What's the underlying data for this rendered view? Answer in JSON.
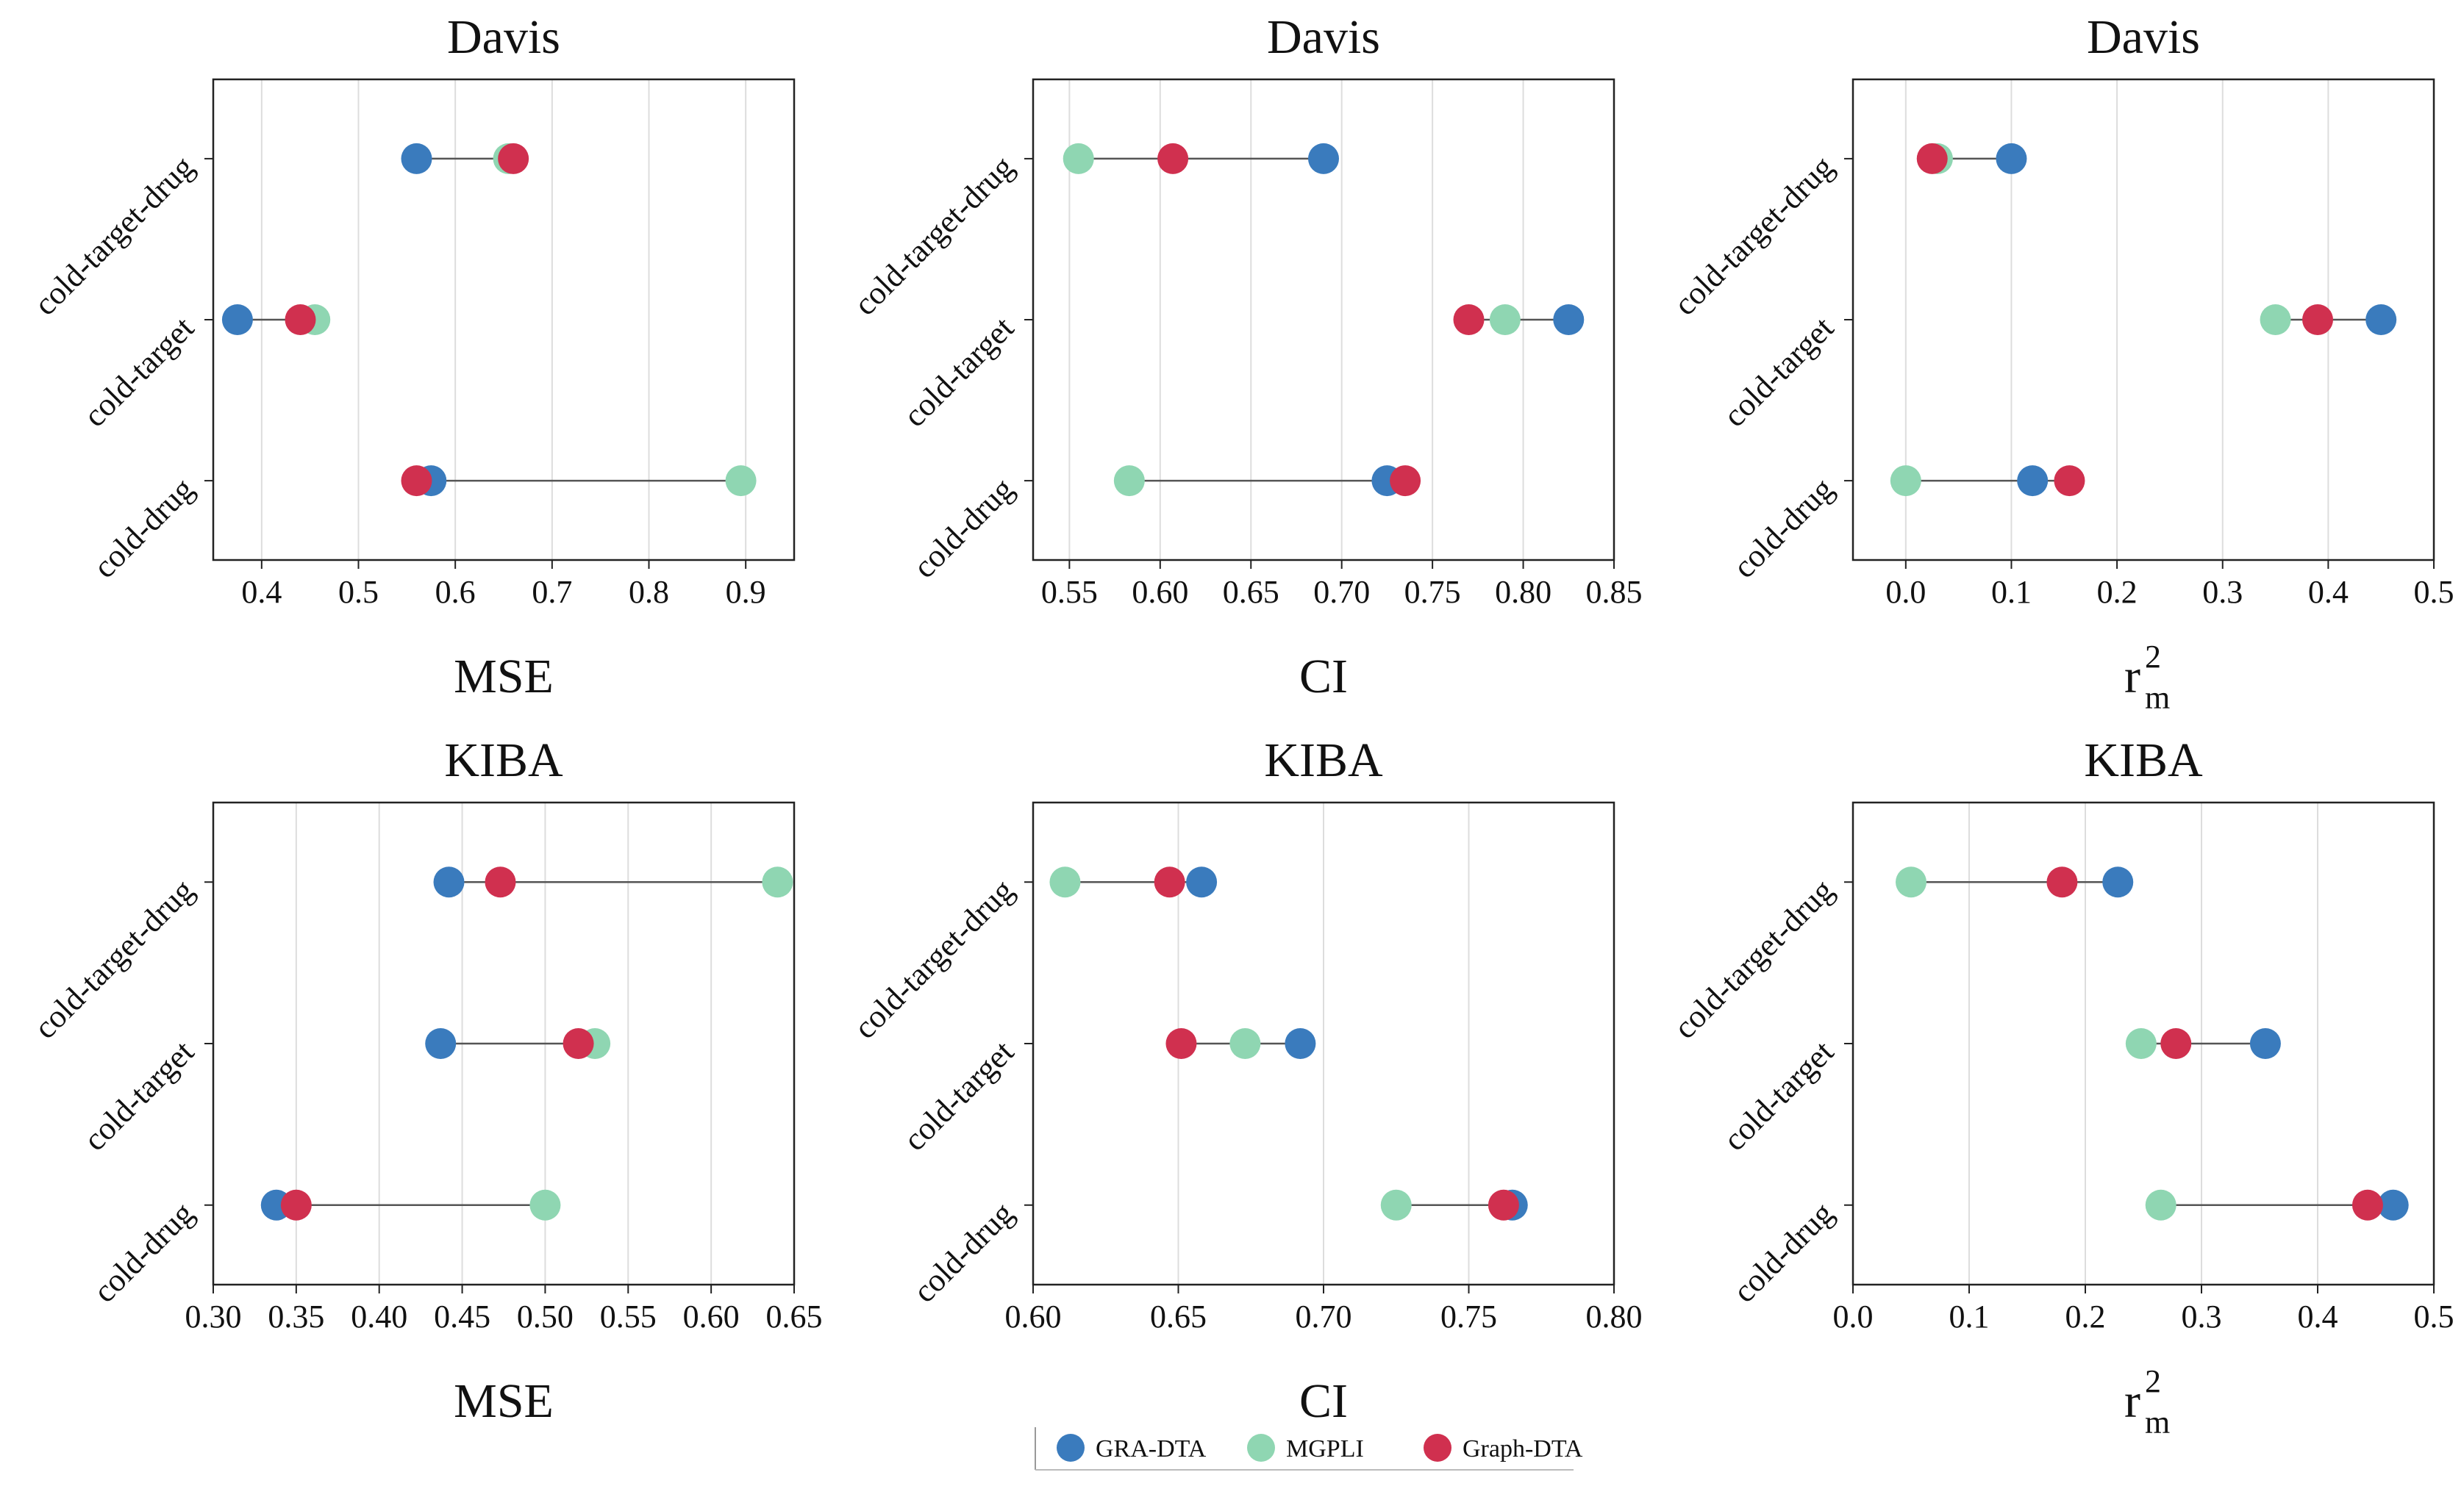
{
  "colors": {
    "GRA-DTA": "#3a7bbd",
    "MGPLI": "#8fd6b2",
    "Graph-DTA": "#d0304f",
    "connector": "#555555",
    "grid": "#dddddd",
    "axis": "#222222"
  },
  "legend": {
    "items": [
      "GRA-DTA",
      "MGPLI",
      "Graph-DTA"
    ],
    "placement": "bottom-center"
  },
  "chart_data": [
    {
      "type": "scatter",
      "subtype": "dumbbell",
      "title": "Davis",
      "xlabel": "MSE",
      "xlim": [
        0.35,
        0.95
      ],
      "xticks": [
        "0.4",
        "0.5",
        "0.6",
        "0.7",
        "0.8",
        "0.9"
      ],
      "categories": [
        "cold-target-drug",
        "cold-target",
        "cold-drug"
      ],
      "grid": "vertical",
      "series": [
        {
          "name": "GRA-DTA",
          "values": [
            0.56,
            0.375,
            0.575
          ]
        },
        {
          "name": "MGPLI",
          "values": [
            0.655,
            0.455,
            0.895
          ]
        },
        {
          "name": "Graph-DTA",
          "values": [
            0.66,
            0.44,
            0.56
          ]
        }
      ]
    },
    {
      "type": "scatter",
      "subtype": "dumbbell",
      "title": "Davis",
      "xlabel": "CI",
      "xlim": [
        0.53,
        0.85
      ],
      "xticks": [
        "0.55",
        "0.60",
        "0.65",
        "0.70",
        "0.75",
        "0.80",
        "0.85"
      ],
      "categories": [
        "cold-target-drug",
        "cold-target",
        "cold-drug"
      ],
      "grid": "vertical",
      "series": [
        {
          "name": "GRA-DTA",
          "values": [
            0.69,
            0.825,
            0.725
          ]
        },
        {
          "name": "MGPLI",
          "values": [
            0.555,
            0.79,
            0.583
          ]
        },
        {
          "name": "Graph-DTA",
          "values": [
            0.607,
            0.77,
            0.735
          ]
        }
      ]
    },
    {
      "type": "scatter",
      "subtype": "dumbbell",
      "title": "Davis",
      "xlabel_base": "r",
      "xlabel_sup": "2",
      "xlabel_sub": "m",
      "xlim": [
        -0.05,
        0.5
      ],
      "xticks": [
        "0.0",
        "0.1",
        "0.2",
        "0.3",
        "0.4",
        "0.5"
      ],
      "categories": [
        "cold-target-drug",
        "cold-target",
        "cold-drug"
      ],
      "grid": "vertical",
      "series": [
        {
          "name": "GRA-DTA",
          "values": [
            0.1,
            0.45,
            0.12
          ]
        },
        {
          "name": "MGPLI",
          "values": [
            0.03,
            0.35,
            0.0
          ]
        },
        {
          "name": "Graph-DTA",
          "values": [
            0.025,
            0.39,
            0.155
          ]
        }
      ]
    },
    {
      "type": "scatter",
      "subtype": "dumbbell",
      "title": "KIBA",
      "xlabel": "MSE",
      "xlim": [
        0.3,
        0.65
      ],
      "xticks": [
        "0.30",
        "0.35",
        "0.40",
        "0.45",
        "0.50",
        "0.55",
        "0.60",
        "0.65"
      ],
      "categories": [
        "cold-target-drug",
        "cold-target",
        "cold-drug"
      ],
      "grid": "vertical",
      "series": [
        {
          "name": "GRA-DTA",
          "values": [
            0.442,
            0.437,
            0.338
          ]
        },
        {
          "name": "MGPLI",
          "values": [
            0.64,
            0.53,
            0.5
          ]
        },
        {
          "name": "Graph-DTA",
          "values": [
            0.473,
            0.52,
            0.35
          ]
        }
      ]
    },
    {
      "type": "scatter",
      "subtype": "dumbbell",
      "title": "KIBA",
      "xlabel": "CI",
      "xlim": [
        0.6,
        0.8
      ],
      "xticks": [
        "0.60",
        "0.65",
        "0.70",
        "0.75",
        "0.80"
      ],
      "categories": [
        "cold-target-drug",
        "cold-target",
        "cold-drug"
      ],
      "grid": "vertical",
      "series": [
        {
          "name": "GRA-DTA",
          "values": [
            0.658,
            0.692,
            0.765
          ]
        },
        {
          "name": "MGPLI",
          "values": [
            0.611,
            0.673,
            0.725
          ]
        },
        {
          "name": "Graph-DTA",
          "values": [
            0.647,
            0.651,
            0.762
          ]
        }
      ]
    },
    {
      "type": "scatter",
      "subtype": "dumbbell",
      "title": "KIBA",
      "xlabel_base": "r",
      "xlabel_sup": "2",
      "xlabel_sub": "m",
      "xlim": [
        0.0,
        0.5
      ],
      "xticks": [
        "0.0",
        "0.1",
        "0.2",
        "0.3",
        "0.4",
        "0.5"
      ],
      "categories": [
        "cold-target-drug",
        "cold-target",
        "cold-drug"
      ],
      "grid": "vertical",
      "series": [
        {
          "name": "GRA-DTA",
          "values": [
            0.228,
            0.355,
            0.465
          ]
        },
        {
          "name": "MGPLI",
          "values": [
            0.05,
            0.248,
            0.265
          ]
        },
        {
          "name": "Graph-DTA",
          "values": [
            0.18,
            0.278,
            0.443
          ]
        }
      ]
    }
  ]
}
